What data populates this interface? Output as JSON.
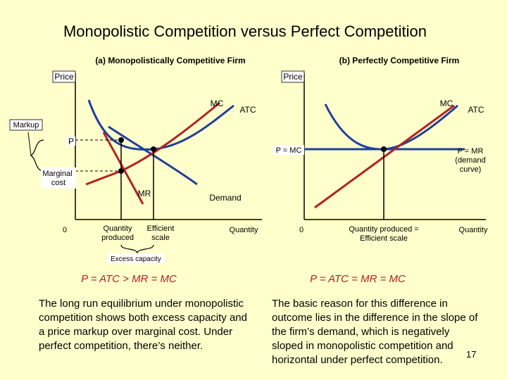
{
  "title": "Monopolistic Competition versus Perfect Competition",
  "panel_a": {
    "heading": "(a) Monopolistically Competitive Firm",
    "y_axis": "Price",
    "x_axis": "Quantity",
    "origin": "0",
    "curves": {
      "mc": "MC",
      "atc": "ATC",
      "mr": "MR",
      "demand": "Demand"
    },
    "labels": {
      "markup": "Markup",
      "p": "P",
      "marginal_cost": "Marginal\ncost",
      "quantity_produced": "Quantity\nproduced",
      "efficient_scale": "Efficient\nscale",
      "excess_capacity": "Excess capacity"
    },
    "equation": "P = ATC > MR = MC"
  },
  "panel_b": {
    "heading": "(b) Perfectly Competitive Firm",
    "y_axis": "Price",
    "x_axis": "Quantity",
    "origin": "0",
    "curves": {
      "mc": "MC",
      "atc": "ATC"
    },
    "labels": {
      "p_eq_mc": "P = MC",
      "p_eq_mr": "P = MR\n(demand\ncurve)",
      "quantity": "Quantity produced =\nEfficient scale"
    },
    "equation": "P = ATC = MR = MC"
  },
  "text_left": "The long run equilibrium under monopolistic\ncompetition shows both excess capacity and\na price markup over marginal cost. Under\nperfect competition, there’s neither.",
  "text_right": "The basic reason for this difference in\noutcome lies in the difference in the slope of\nthe firm’s demand, which is negatively\nsloped in monopolistic competition and\nhorizontal under perfect competition.",
  "page_number": "17",
  "colors": {
    "background": "#ffffcc",
    "mc_curve": "#b22222",
    "atc_curve": "#1f3f9a",
    "mr_curve": "#b22222",
    "demand_curve": "#1f3f9a",
    "price_line_b": "#b22222"
  }
}
